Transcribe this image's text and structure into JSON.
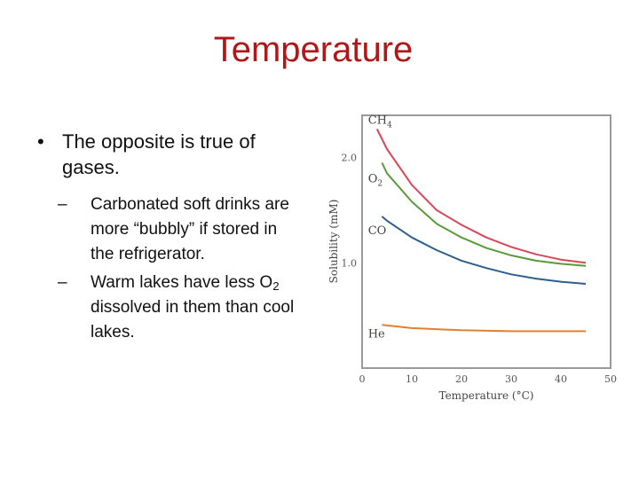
{
  "slide": {
    "title": "Temperature",
    "bullet_main": "The opposite is true of gases.",
    "bullet_symbol": "•",
    "dash_symbol": "–",
    "sub1": "Carbonated soft drinks are more “bubbly” if stored in the refrigerator.",
    "sub2_pre": "Warm lakes have less O",
    "sub2_subscript": "2",
    "sub2_post": " dissolved in them than cool lakes."
  },
  "chart_data": {
    "type": "line",
    "xlabel": "Temperature (°C)",
    "ylabel": "Solubility (mM)",
    "xlim": [
      0,
      50
    ],
    "ylim": [
      0.0,
      2.4
    ],
    "xticks": [
      0,
      10,
      20,
      30,
      40,
      50
    ],
    "yticks": [
      1.0,
      2.0
    ],
    "ytick_labels": [
      "1.0",
      "2.0"
    ],
    "series": [
      {
        "name": "CH4",
        "label_main": "CH",
        "label_sub": "4",
        "color": "#d8475a",
        "x": [
          3,
          5,
          10,
          15,
          20,
          25,
          30,
          35,
          40,
          45
        ],
        "y": [
          2.27,
          2.08,
          1.74,
          1.5,
          1.36,
          1.24,
          1.15,
          1.08,
          1.03,
          1.0
        ]
      },
      {
        "name": "O2",
        "label_main": "O",
        "label_sub": "2",
        "color": "#5a9a3c",
        "x": [
          4,
          5,
          10,
          15,
          20,
          25,
          30,
          35,
          40,
          45
        ],
        "y": [
          1.95,
          1.85,
          1.58,
          1.37,
          1.24,
          1.14,
          1.07,
          1.02,
          0.99,
          0.97
        ]
      },
      {
        "name": "CO",
        "label_main": "CO",
        "label_sub": "",
        "color": "#2e5e8e",
        "x": [
          4,
          5,
          10,
          15,
          20,
          25,
          30,
          35,
          40,
          45
        ],
        "y": [
          1.44,
          1.4,
          1.24,
          1.12,
          1.02,
          0.95,
          0.89,
          0.85,
          0.82,
          0.8
        ]
      },
      {
        "name": "He",
        "label_main": "He",
        "label_sub": "",
        "color": "#e08030",
        "x": [
          4,
          10,
          20,
          30,
          40,
          45
        ],
        "y": [
          0.41,
          0.38,
          0.36,
          0.35,
          0.35,
          0.35
        ]
      }
    ]
  }
}
